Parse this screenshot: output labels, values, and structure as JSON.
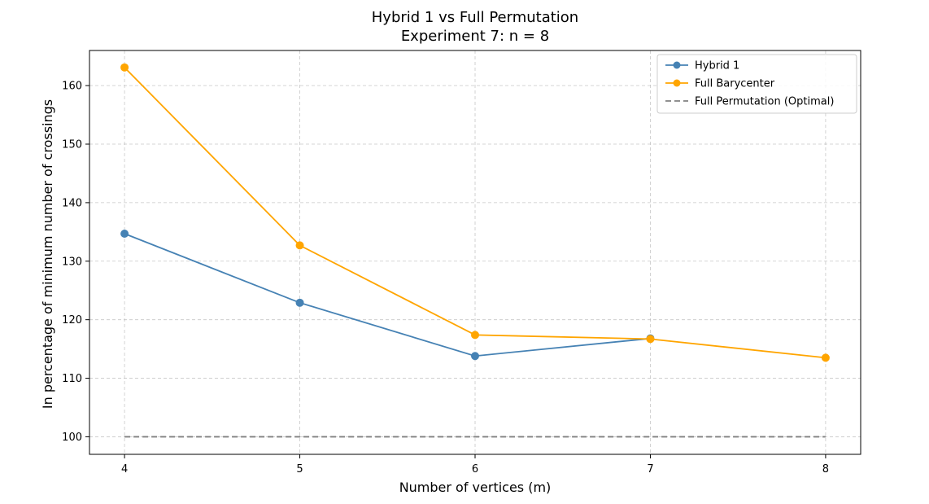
{
  "chart_data": {
    "type": "line",
    "title": "Hybrid 1 vs Full Permutation",
    "subtitle": "Experiment 7:  n = 8",
    "xlabel": "Number of vertices (m)",
    "ylabel": "In percentage of minimum number of crossings",
    "x": [
      4,
      5,
      6,
      7,
      8
    ],
    "xlim": [
      3.8,
      8.2
    ],
    "ylim": [
      97,
      166
    ],
    "xticks": [
      4,
      5,
      6,
      7,
      8
    ],
    "yticks": [
      100,
      110,
      120,
      130,
      140,
      150,
      160
    ],
    "grid": true,
    "legend_position": "top-right",
    "series": [
      {
        "name": "Hybrid 1",
        "values": [
          134.7,
          122.9,
          113.8,
          116.8,
          null
        ],
        "color": "#4682b4",
        "style": "solid",
        "marker": "circle"
      },
      {
        "name": "Full Barycenter",
        "values": [
          163.1,
          132.7,
          117.4,
          116.7,
          113.5
        ],
        "color": "#ffa500",
        "style": "solid",
        "marker": "circle"
      },
      {
        "name": "Full Permutation (Optimal)",
        "values": [
          100,
          100,
          100,
          100,
          100
        ],
        "color": "#808080",
        "style": "dashed",
        "marker": "none"
      }
    ]
  }
}
